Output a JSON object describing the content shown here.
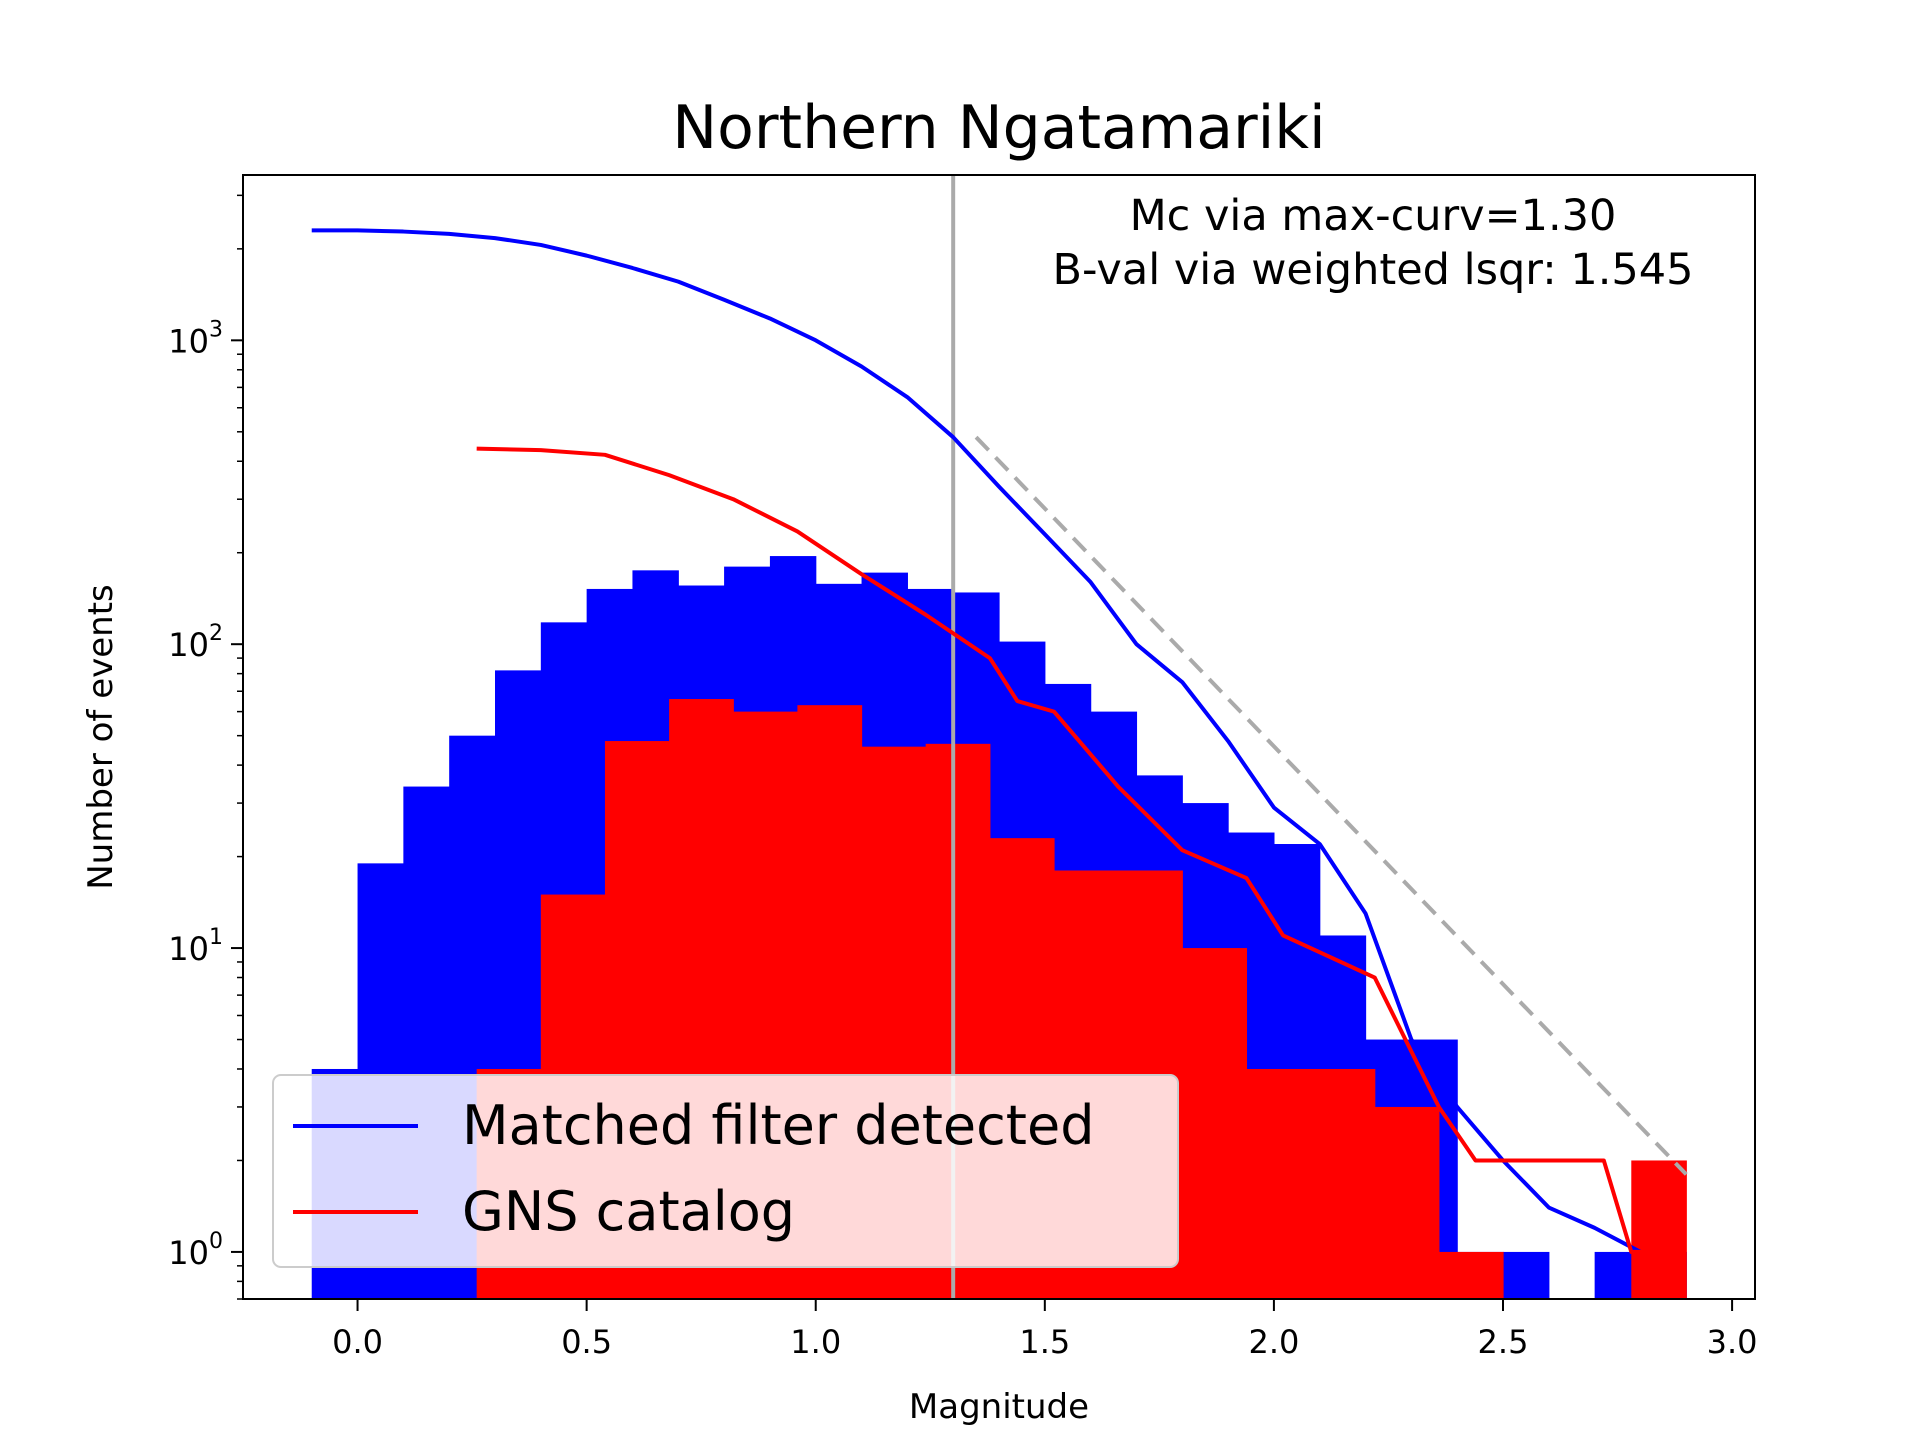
{
  "chart_data": {
    "type": "bar",
    "title": "Northern Ngatamariki",
    "xlabel": "Magnitude",
    "ylabel": "Number of events",
    "xlim": [
      -0.25,
      3.05
    ],
    "ylim": [
      0.7,
      3500
    ],
    "yscale": "log",
    "grid": false,
    "legend_position": "lower-left",
    "xticks": [
      0.0,
      0.5,
      1.0,
      1.5,
      2.0,
      2.5,
      3.0
    ],
    "xtick_labels": [
      "0.0",
      "0.5",
      "1.0",
      "1.5",
      "2.0",
      "2.5",
      "3.0"
    ],
    "yticks": [
      {
        "value": 1,
        "base": "10",
        "exp": "0"
      },
      {
        "value": 10,
        "base": "10",
        "exp": "1"
      },
      {
        "value": 100,
        "base": "10",
        "exp": "2"
      },
      {
        "value": 1000,
        "base": "10",
        "exp": "3"
      }
    ],
    "annotations": [
      "Mc via max-curv=1.30",
      "B-val via weighted lsqr: 1.545"
    ],
    "mc_line": {
      "x": 1.3,
      "color": "#aaaaaa"
    },
    "histograms": [
      {
        "name": "Matched filter detected",
        "color": "#0000ff",
        "bins": [
          [
            -0.1,
            0.0,
            4
          ],
          [
            0.0,
            0.1,
            19
          ],
          [
            0.1,
            0.2,
            34
          ],
          [
            0.2,
            0.3,
            50
          ],
          [
            0.3,
            0.4,
            82
          ],
          [
            0.4,
            0.5,
            118
          ],
          [
            0.5,
            0.6,
            152
          ],
          [
            0.6,
            0.7,
            175
          ],
          [
            0.7,
            0.8,
            156
          ],
          [
            0.8,
            0.9,
            180
          ],
          [
            0.9,
            1.0,
            195
          ],
          [
            1.0,
            1.1,
            158
          ],
          [
            1.1,
            1.2,
            172
          ],
          [
            1.2,
            1.3,
            152
          ],
          [
            1.3,
            1.4,
            148
          ],
          [
            1.4,
            1.5,
            102
          ],
          [
            1.5,
            1.6,
            74
          ],
          [
            1.6,
            1.7,
            60
          ],
          [
            1.7,
            1.8,
            37
          ],
          [
            1.8,
            1.9,
            30
          ],
          [
            1.9,
            2.0,
            24
          ],
          [
            2.0,
            2.1,
            22
          ],
          [
            2.1,
            2.2,
            11
          ],
          [
            2.2,
            2.3,
            5
          ],
          [
            2.3,
            2.4,
            5
          ],
          [
            2.4,
            2.5,
            1
          ],
          [
            2.5,
            2.6,
            1
          ],
          [
            2.6,
            2.7,
            0
          ],
          [
            2.7,
            2.8,
            1
          ],
          [
            2.8,
            2.9,
            1
          ]
        ]
      },
      {
        "name": "GNS catalog",
        "color": "#ff0000",
        "bins": [
          [
            0.26,
            0.4,
            4
          ],
          [
            0.4,
            0.54,
            15
          ],
          [
            0.54,
            0.68,
            48
          ],
          [
            0.68,
            0.82,
            66
          ],
          [
            0.82,
            0.96,
            60
          ],
          [
            0.96,
            1.1,
            63
          ],
          [
            1.1,
            1.24,
            46
          ],
          [
            1.24,
            1.38,
            47
          ],
          [
            1.38,
            1.52,
            23
          ],
          [
            1.52,
            1.66,
            18
          ],
          [
            1.66,
            1.8,
            18
          ],
          [
            1.8,
            1.94,
            10
          ],
          [
            1.94,
            2.08,
            4
          ],
          [
            2.08,
            2.22,
            4
          ],
          [
            2.22,
            2.36,
            3
          ],
          [
            2.36,
            2.5,
            1
          ],
          [
            2.5,
            2.64,
            0
          ],
          [
            2.64,
            2.78,
            0
          ],
          [
            2.78,
            2.9,
            2
          ]
        ]
      }
    ],
    "series": [
      {
        "name": "Matched filter detected",
        "color": "#0000ff",
        "x": [
          -0.1,
          0.0,
          0.1,
          0.2,
          0.3,
          0.4,
          0.5,
          0.6,
          0.7,
          0.8,
          0.9,
          1.0,
          1.1,
          1.2,
          1.3,
          1.4,
          1.5,
          1.6,
          1.7,
          1.8,
          1.9,
          2.0,
          2.1,
          2.2,
          2.3,
          2.4,
          2.5,
          2.6,
          2.7,
          2.8
        ],
        "y": [
          2300,
          2300,
          2280,
          2240,
          2170,
          2060,
          1900,
          1730,
          1560,
          1360,
          1180,
          1000,
          820,
          650,
          480,
          330,
          230,
          160,
          100,
          75,
          48,
          29,
          22,
          13,
          5,
          3,
          2,
          1.4,
          1.2,
          1
        ]
      },
      {
        "name": "GNS catalog",
        "color": "#ff0000",
        "x": [
          0.26,
          0.4,
          0.54,
          0.68,
          0.82,
          0.96,
          1.1,
          1.24,
          1.38,
          1.44,
          1.52,
          1.66,
          1.8,
          1.94,
          2.02,
          2.08,
          2.22,
          2.36,
          2.44,
          2.5,
          2.64,
          2.72,
          2.78,
          2.9
        ],
        "y": [
          440,
          435,
          420,
          360,
          300,
          235,
          170,
          125,
          90,
          65,
          60,
          34,
          21,
          17,
          11,
          10,
          8,
          3,
          2,
          2,
          2,
          2,
          1,
          1
        ]
      },
      {
        "name": "",
        "color": "#aaaaaa",
        "dashed": true,
        "x": [
          1.35,
          2.9
        ],
        "y": [
          480,
          1.8
        ]
      }
    ]
  }
}
